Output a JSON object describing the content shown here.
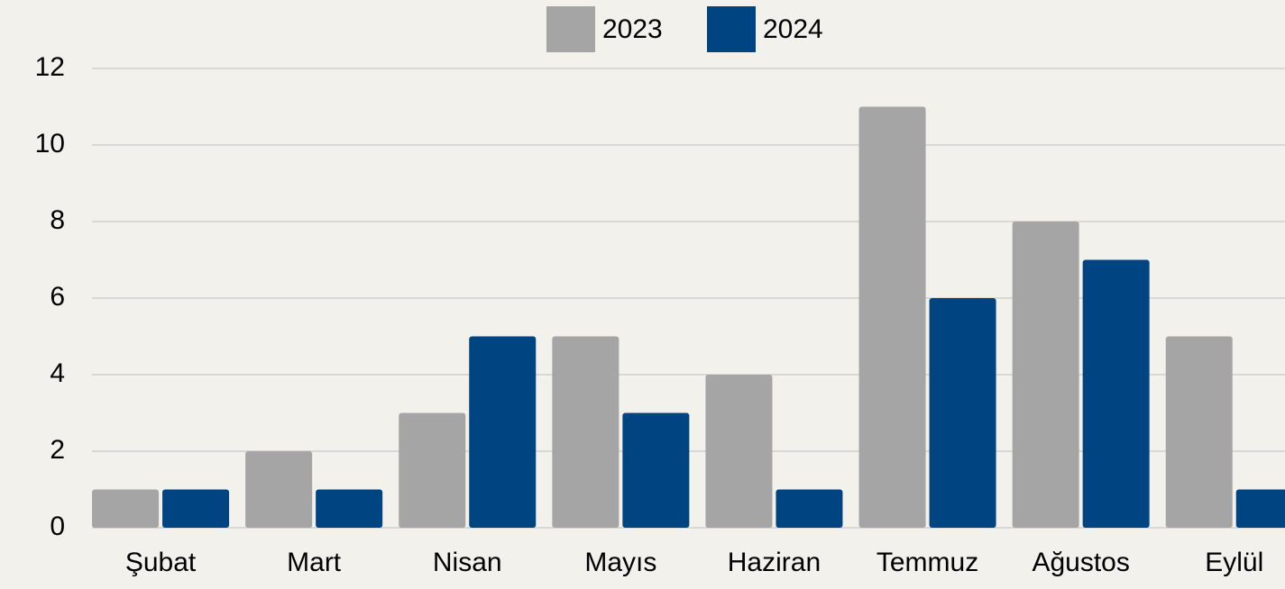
{
  "chart_data": {
    "type": "bar",
    "categories": [
      "Şubat",
      "Mart",
      "Nisan",
      "Mayıs",
      "Haziran",
      "Temmuz",
      "Ağustos",
      "Eylül"
    ],
    "series": [
      {
        "name": "2023",
        "color": "#a5a5a5",
        "values": [
          1,
          2,
          3,
          5,
          4,
          11,
          8,
          5
        ]
      },
      {
        "name": "2024",
        "color": "#004582",
        "values": [
          1,
          1,
          5,
          3,
          1,
          6,
          7,
          1
        ]
      }
    ],
    "ylim": [
      0,
      12
    ],
    "yticks": [
      0,
      2,
      4,
      6,
      8,
      10,
      12
    ],
    "grid": true,
    "legend": "top"
  }
}
